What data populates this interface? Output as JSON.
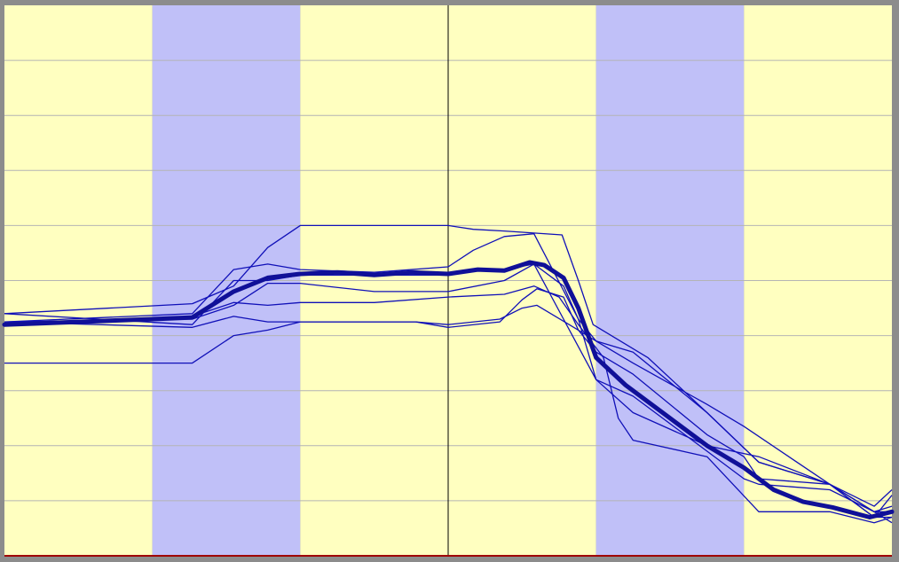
{
  "chart_data": {
    "type": "line",
    "title": "",
    "xlabel": "",
    "ylabel": "",
    "xlim": [
      0,
      6
    ],
    "ylim": [
      0,
      10
    ],
    "grid": true,
    "legend": "none",
    "colors": {
      "band_light": "#ffffc0",
      "band_dark": "#c0c0f8",
      "gridline": "#b4b4b4",
      "series": "#1010b8",
      "mean": "#101098",
      "baseline": "#a00000",
      "marker_line": "#000000",
      "frame": "#8c8c8c"
    },
    "bands": [
      {
        "from": 0,
        "to": 1,
        "shade": "light"
      },
      {
        "from": 1,
        "to": 2,
        "shade": "dark"
      },
      {
        "from": 2,
        "to": 3,
        "shade": "light"
      },
      {
        "from": 3,
        "to": 4,
        "shade": "light"
      },
      {
        "from": 4,
        "to": 5,
        "shade": "dark"
      },
      {
        "from": 5,
        "to": 6,
        "shade": "light"
      }
    ],
    "vertical_marker_x": 3.0,
    "gridlines_y": [
      1,
      2,
      3,
      4,
      5,
      6,
      7,
      8,
      9
    ],
    "series": [
      {
        "points": [
          [
            0,
            4.4
          ],
          [
            1.27,
            4.58
          ],
          [
            1.55,
            4.9
          ],
          [
            1.78,
            5.6
          ],
          [
            2.0,
            6.0
          ],
          [
            3.0,
            6.0
          ],
          [
            3.17,
            5.93
          ],
          [
            3.38,
            5.9
          ],
          [
            3.77,
            5.83
          ],
          [
            3.88,
            5.0
          ],
          [
            3.98,
            4.2
          ],
          [
            4.35,
            3.6
          ],
          [
            4.75,
            2.6
          ],
          [
            5.1,
            1.7
          ],
          [
            5.58,
            1.3
          ],
          [
            5.88,
            0.7
          ],
          [
            6.0,
            1.1
          ]
        ]
      },
      {
        "points": [
          [
            0,
            4.25
          ],
          [
            1.27,
            4.4
          ],
          [
            1.55,
            5.2
          ],
          [
            1.78,
            5.3
          ],
          [
            2.0,
            5.2
          ],
          [
            2.5,
            5.15
          ],
          [
            3.0,
            5.25
          ],
          [
            3.17,
            5.55
          ],
          [
            3.38,
            5.8
          ],
          [
            3.58,
            5.85
          ],
          [
            3.88,
            4.3
          ],
          [
            4.0,
            3.9
          ],
          [
            4.25,
            3.5
          ],
          [
            4.75,
            2.75
          ],
          [
            5.0,
            2.35
          ],
          [
            5.58,
            1.3
          ],
          [
            5.88,
            0.8
          ],
          [
            6.0,
            0.8
          ]
        ]
      },
      {
        "points": [
          [
            0,
            4.4
          ],
          [
            1.27,
            4.2
          ],
          [
            1.55,
            5.0
          ],
          [
            1.78,
            5.0
          ],
          [
            2.0,
            5.1
          ],
          [
            3.0,
            5.1
          ],
          [
            3.17,
            5.2
          ],
          [
            3.38,
            5.2
          ],
          [
            3.58,
            5.3
          ],
          [
            3.78,
            4.3
          ],
          [
            4.0,
            3.2
          ],
          [
            4.25,
            2.6
          ],
          [
            4.75,
            2.0
          ],
          [
            5.1,
            1.8
          ],
          [
            5.58,
            1.3
          ],
          [
            5.88,
            0.7
          ],
          [
            6.0,
            0.7
          ]
        ]
      },
      {
        "points": [
          [
            0,
            4.25
          ],
          [
            1.27,
            4.15
          ],
          [
            1.55,
            4.35
          ],
          [
            1.78,
            4.25
          ],
          [
            2.0,
            4.25
          ],
          [
            2.78,
            4.25
          ],
          [
            3.0,
            4.15
          ],
          [
            3.35,
            4.25
          ],
          [
            3.5,
            4.65
          ],
          [
            3.6,
            4.85
          ],
          [
            3.78,
            4.7
          ],
          [
            3.88,
            4.1
          ],
          [
            4.0,
            3.7
          ],
          [
            4.25,
            3.3
          ],
          [
            4.75,
            2.2
          ],
          [
            5.0,
            1.8
          ],
          [
            5.1,
            1.4
          ],
          [
            5.58,
            1.3
          ],
          [
            5.88,
            0.9
          ],
          [
            6.0,
            1.2
          ]
        ]
      },
      {
        "points": [
          [
            0,
            3.5
          ],
          [
            1.27,
            3.5
          ],
          [
            1.55,
            4.0
          ],
          [
            1.78,
            4.1
          ],
          [
            2.0,
            4.25
          ],
          [
            2.78,
            4.25
          ],
          [
            3.0,
            4.2
          ],
          [
            3.35,
            4.3
          ],
          [
            3.5,
            4.5
          ],
          [
            3.6,
            4.55
          ],
          [
            3.88,
            4.1
          ],
          [
            4.0,
            3.9
          ],
          [
            4.25,
            3.7
          ],
          [
            4.75,
            2.6
          ],
          [
            5.1,
            1.7
          ],
          [
            5.58,
            1.3
          ],
          [
            5.88,
            0.8
          ],
          [
            6.0,
            0.6
          ]
        ]
      },
      {
        "points": [
          [
            0,
            4.2
          ],
          [
            1.27,
            4.35
          ],
          [
            1.55,
            4.6
          ],
          [
            1.78,
            4.55
          ],
          [
            2.0,
            4.6
          ],
          [
            2.5,
            4.6
          ],
          [
            3.0,
            4.7
          ],
          [
            3.38,
            4.75
          ],
          [
            3.58,
            4.9
          ],
          [
            3.75,
            4.7
          ],
          [
            3.88,
            4.2
          ],
          [
            4.05,
            3.6
          ],
          [
            4.15,
            2.5
          ],
          [
            4.25,
            2.1
          ],
          [
            4.75,
            1.8
          ],
          [
            5.1,
            0.8
          ],
          [
            5.58,
            0.8
          ],
          [
            5.88,
            0.6
          ],
          [
            6.0,
            0.7
          ]
        ]
      },
      {
        "points": [
          [
            0,
            4.25
          ],
          [
            1.27,
            4.3
          ],
          [
            1.55,
            4.55
          ],
          [
            1.78,
            4.95
          ],
          [
            2.0,
            4.95
          ],
          [
            2.5,
            4.8
          ],
          [
            3.0,
            4.8
          ],
          [
            3.38,
            5.0
          ],
          [
            3.58,
            5.3
          ],
          [
            3.78,
            4.9
          ],
          [
            3.88,
            4.3
          ],
          [
            4.0,
            3.2
          ],
          [
            4.25,
            2.9
          ],
          [
            4.75,
            1.9
          ],
          [
            5.0,
            1.4
          ],
          [
            5.1,
            1.3
          ],
          [
            5.58,
            1.2
          ],
          [
            5.88,
            0.8
          ],
          [
            6.0,
            0.9
          ]
        ]
      }
    ],
    "mean_series": {
      "points": [
        [
          0,
          4.2
        ],
        [
          0.5,
          4.25
        ],
        [
          1.0,
          4.3
        ],
        [
          1.27,
          4.33
        ],
        [
          1.55,
          4.8
        ],
        [
          1.78,
          5.05
        ],
        [
          2.0,
          5.12
        ],
        [
          2.25,
          5.15
        ],
        [
          2.5,
          5.1
        ],
        [
          2.75,
          5.15
        ],
        [
          3.0,
          5.12
        ],
        [
          3.2,
          5.2
        ],
        [
          3.38,
          5.18
        ],
        [
          3.55,
          5.33
        ],
        [
          3.65,
          5.28
        ],
        [
          3.78,
          5.05
        ],
        [
          3.88,
          4.5
        ],
        [
          4.0,
          3.6
        ],
        [
          4.2,
          3.1
        ],
        [
          4.5,
          2.5
        ],
        [
          4.75,
          2.0
        ],
        [
          5.0,
          1.6
        ],
        [
          5.2,
          1.2
        ],
        [
          5.4,
          0.98
        ],
        [
          5.6,
          0.88
        ],
        [
          5.85,
          0.7
        ],
        [
          6.0,
          0.8
        ]
      ]
    }
  }
}
